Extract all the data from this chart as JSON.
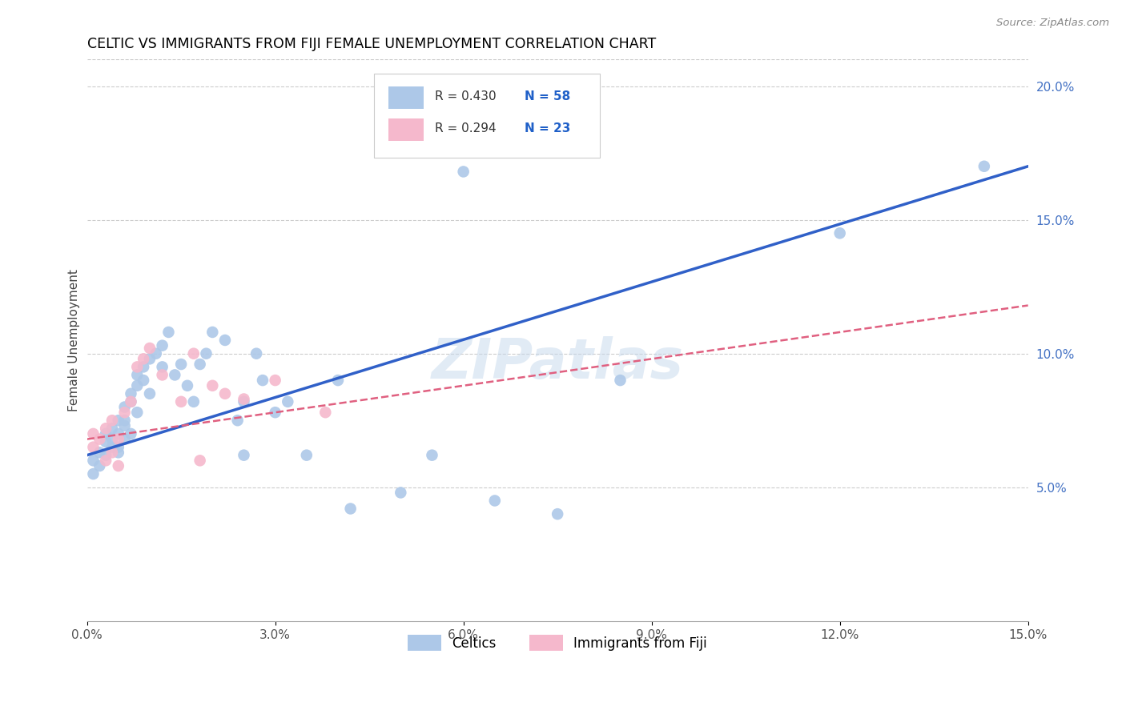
{
  "title": "CELTIC VS IMMIGRANTS FROM FIJI FEMALE UNEMPLOYMENT CORRELATION CHART",
  "source": "Source: ZipAtlas.com",
  "ylabel": "Female Unemployment",
  "xlim": [
    0.0,
    0.15
  ],
  "ylim": [
    0.0,
    0.21
  ],
  "xticks": [
    0.0,
    0.03,
    0.06,
    0.09,
    0.12,
    0.15
  ],
  "yticks_right": [
    0.05,
    0.1,
    0.15,
    0.2
  ],
  "ytick_labels_right": [
    "5.0%",
    "10.0%",
    "15.0%",
    "20.0%"
  ],
  "xtick_labels": [
    "0.0%",
    "3.0%",
    "6.0%",
    "9.0%",
    "12.0%",
    "15.0%"
  ],
  "celtics_color": "#adc8e8",
  "fiji_color": "#f5b8cc",
  "line_celtics_color": "#3060c8",
  "line_fiji_color": "#e06080",
  "watermark": "ZIPatlas",
  "celtics_x": [
    0.001,
    0.001,
    0.002,
    0.002,
    0.003,
    0.003,
    0.003,
    0.004,
    0.004,
    0.004,
    0.005,
    0.005,
    0.005,
    0.005,
    0.006,
    0.006,
    0.006,
    0.006,
    0.007,
    0.007,
    0.007,
    0.008,
    0.008,
    0.008,
    0.009,
    0.009,
    0.01,
    0.01,
    0.011,
    0.012,
    0.012,
    0.013,
    0.014,
    0.015,
    0.016,
    0.017,
    0.018,
    0.019,
    0.02,
    0.022,
    0.024,
    0.025,
    0.025,
    0.027,
    0.028,
    0.03,
    0.032,
    0.035,
    0.04,
    0.042,
    0.05,
    0.055,
    0.06,
    0.065,
    0.075,
    0.085,
    0.12,
    0.143
  ],
  "celtics_y": [
    0.06,
    0.055,
    0.058,
    0.063,
    0.067,
    0.062,
    0.07,
    0.065,
    0.068,
    0.072,
    0.065,
    0.07,
    0.075,
    0.063,
    0.068,
    0.08,
    0.073,
    0.075,
    0.082,
    0.085,
    0.07,
    0.088,
    0.092,
    0.078,
    0.09,
    0.095,
    0.098,
    0.085,
    0.1,
    0.103,
    0.095,
    0.108,
    0.092,
    0.096,
    0.088,
    0.082,
    0.096,
    0.1,
    0.108,
    0.105,
    0.075,
    0.082,
    0.062,
    0.1,
    0.09,
    0.078,
    0.082,
    0.062,
    0.09,
    0.042,
    0.048,
    0.062,
    0.168,
    0.045,
    0.04,
    0.09,
    0.145,
    0.17
  ],
  "fiji_x": [
    0.001,
    0.001,
    0.002,
    0.003,
    0.003,
    0.004,
    0.004,
    0.005,
    0.005,
    0.006,
    0.007,
    0.008,
    0.009,
    0.01,
    0.012,
    0.015,
    0.017,
    0.018,
    0.02,
    0.022,
    0.025,
    0.03,
    0.038
  ],
  "fiji_y": [
    0.065,
    0.07,
    0.068,
    0.072,
    0.06,
    0.075,
    0.063,
    0.068,
    0.058,
    0.078,
    0.082,
    0.095,
    0.098,
    0.102,
    0.092,
    0.082,
    0.1,
    0.06,
    0.088,
    0.085,
    0.083,
    0.09,
    0.078
  ],
  "celtics_line_x0": 0.0,
  "celtics_line_y0": 0.062,
  "celtics_line_x1": 0.15,
  "celtics_line_y1": 0.17,
  "fiji_line_x0": 0.0,
  "fiji_line_y0": 0.068,
  "fiji_line_x1": 0.15,
  "fiji_line_y1": 0.118
}
